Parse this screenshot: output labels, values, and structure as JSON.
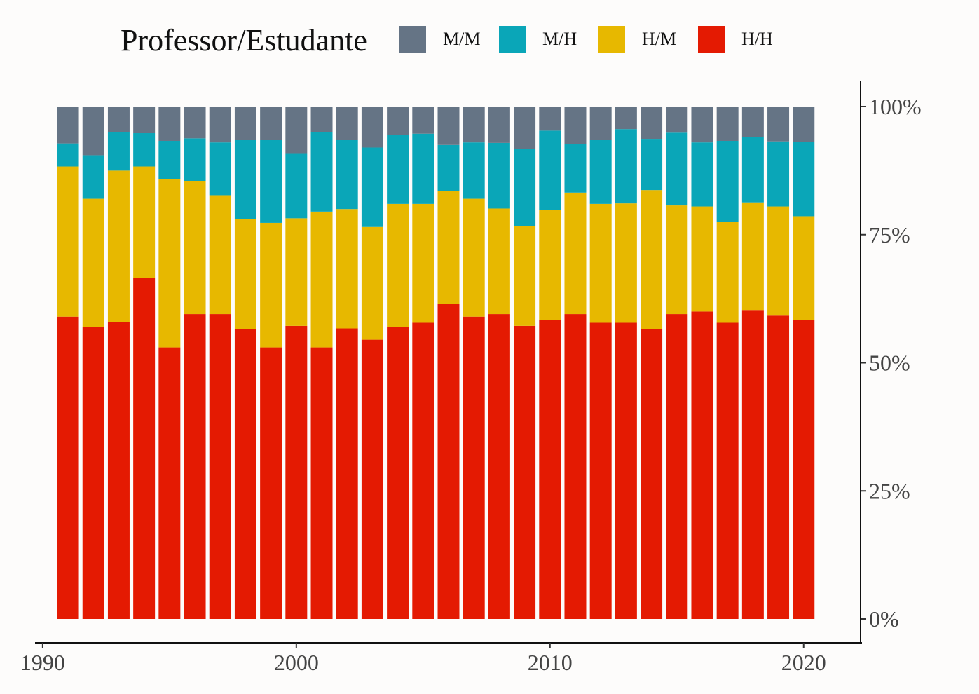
{
  "chart_data": {
    "type": "bar",
    "stacked": true,
    "normalized": true,
    "legend_title": "Professor/Estudante",
    "legend_position": "top",
    "y_axis_position": "right",
    "ylim": [
      0,
      1
    ],
    "yticks": [
      0,
      0.25,
      0.5,
      0.75,
      1.0
    ],
    "ytick_labels": [
      "0%",
      "25%",
      "50%",
      "75%",
      "100%"
    ],
    "xlim": [
      1989.7,
      2022.3
    ],
    "xticks": [
      1990,
      2000,
      2010,
      2020
    ],
    "xtick_labels": [
      "1990",
      "2000",
      "2010",
      "2020"
    ],
    "grid": false,
    "x": [
      1991,
      1992,
      1993,
      1994,
      1995,
      1996,
      1997,
      1998,
      1999,
      2000,
      2001,
      2002,
      2003,
      2004,
      2005,
      2006,
      2007,
      2008,
      2009,
      2010,
      2011,
      2012,
      2013,
      2014,
      2015,
      2016,
      2017,
      2018,
      2019,
      2020
    ],
    "series": [
      {
        "name": "H/H",
        "color": "#e41a02",
        "values": [
          0.59,
          0.57,
          0.58,
          0.665,
          0.53,
          0.595,
          0.595,
          0.565,
          0.53,
          0.572,
          0.53,
          0.567,
          0.545,
          0.57,
          0.578,
          0.615,
          0.59,
          0.595,
          0.572,
          0.583,
          0.595,
          0.578,
          0.578,
          0.565,
          0.595,
          0.6,
          0.578,
          0.603,
          0.592,
          0.583
        ]
      },
      {
        "name": "H/M",
        "color": "#e7b800",
        "values": [
          0.293,
          0.25,
          0.295,
          0.218,
          0.328,
          0.26,
          0.232,
          0.215,
          0.243,
          0.21,
          0.265,
          0.233,
          0.22,
          0.24,
          0.232,
          0.22,
          0.23,
          0.206,
          0.195,
          0.215,
          0.237,
          0.232,
          0.233,
          0.272,
          0.212,
          0.205,
          0.197,
          0.21,
          0.213,
          0.203
        ]
      },
      {
        "name": "M/H",
        "color": "#0aa6b8",
        "values": [
          0.045,
          0.085,
          0.075,
          0.065,
          0.075,
          0.083,
          0.103,
          0.155,
          0.162,
          0.127,
          0.155,
          0.135,
          0.155,
          0.135,
          0.137,
          0.09,
          0.11,
          0.128,
          0.15,
          0.155,
          0.095,
          0.125,
          0.145,
          0.1,
          0.142,
          0.125,
          0.158,
          0.127,
          0.127,
          0.145
        ]
      },
      {
        "name": "M/M",
        "color": "#657485",
        "values": [
          0.072,
          0.095,
          0.05,
          0.052,
          0.067,
          0.062,
          0.07,
          0.065,
          0.065,
          0.091,
          0.05,
          0.065,
          0.08,
          0.055,
          0.053,
          0.075,
          0.07,
          0.071,
          0.083,
          0.047,
          0.073,
          0.065,
          0.044,
          0.063,
          0.051,
          0.07,
          0.067,
          0.06,
          0.068,
          0.069
        ]
      }
    ],
    "legend_order": [
      "M/M",
      "M/H",
      "H/M",
      "H/H"
    ]
  }
}
